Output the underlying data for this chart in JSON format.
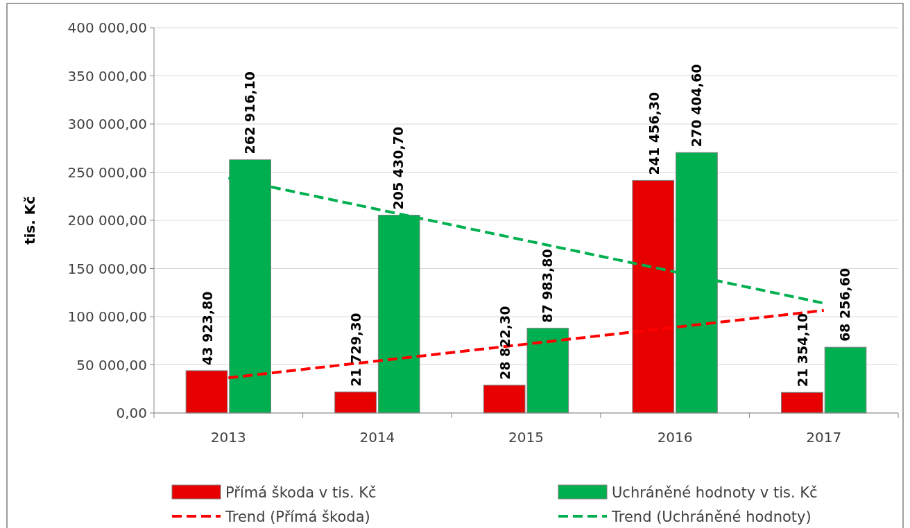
{
  "chart_data": {
    "type": "bar",
    "ylabel": "tis. Kč",
    "categories": [
      "2013",
      "2014",
      "2015",
      "2016",
      "2017"
    ],
    "series": [
      {
        "name": "Přímá škoda v tis. Kč",
        "color": "#e60000",
        "values": [
          43923.8,
          21729.3,
          28822.3,
          241456.3,
          21354.1
        ],
        "value_labels": [
          "43 923,80",
          "21 729,30",
          "28 822,30",
          "241 456,30",
          "21 354,10"
        ]
      },
      {
        "name": "Uchráněné hodnoty v tis. Kč",
        "color": "#00b050",
        "values": [
          262916.1,
          205430.7,
          87983.8,
          270404.6,
          68256.6
        ],
        "value_labels": [
          "262 916,10",
          "205 430,70",
          "87 983,80",
          "270 404,60",
          "68 256,60"
        ]
      },
      {
        "name": "Trend (Přímá škoda)",
        "type": "line",
        "color": "#ff0000",
        "line_style": "dashed",
        "values": [
          36500,
          54000,
          71500,
          89000,
          106500
        ]
      },
      {
        "name": "Trend (Uchráněné hodnoty)",
        "type": "line",
        "color": "#00b050",
        "line_style": "dashed",
        "values": [
          244000,
          211500,
          179000,
          146500,
          114000
        ]
      }
    ],
    "ylim": [
      0,
      400000
    ],
    "yticks": [
      {
        "value": 0,
        "label": "0,00"
      },
      {
        "value": 50000,
        "label": "50 000,00"
      },
      {
        "value": 100000,
        "label": "100 000,00"
      },
      {
        "value": 150000,
        "label": "150 000,00"
      },
      {
        "value": 200000,
        "label": "200 000,00"
      },
      {
        "value": 250000,
        "label": "250 000,00"
      },
      {
        "value": 300000,
        "label": "300 000,00"
      },
      {
        "value": 350000,
        "label": "350 000,00"
      },
      {
        "value": 400000,
        "label": "400 000,00"
      }
    ],
    "grid": "y",
    "legend": "bottom"
  }
}
